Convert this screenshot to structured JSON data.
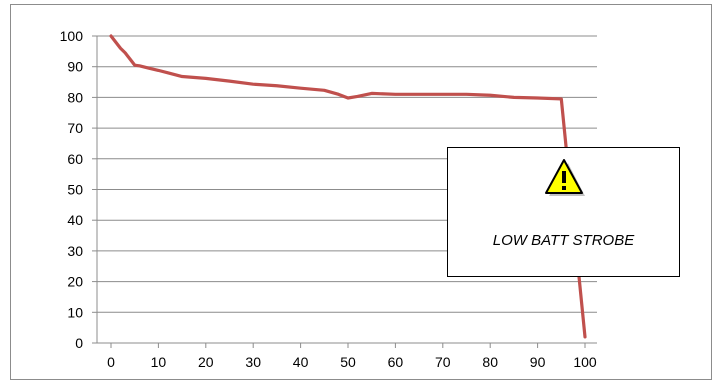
{
  "chart_data": {
    "type": "line",
    "title": "",
    "xlabel": "",
    "ylabel": "",
    "xlim": [
      0,
      100
    ],
    "ylim": [
      0,
      100
    ],
    "x_ticks": [
      0,
      10,
      20,
      30,
      40,
      50,
      60,
      70,
      80,
      90,
      100
    ],
    "y_ticks": [
      0,
      10,
      20,
      30,
      40,
      50,
      60,
      70,
      80,
      90,
      100
    ],
    "grid": "horizontal",
    "legend": "none",
    "series": [
      {
        "color": "#c0504d",
        "x": [
          0,
          1,
          2,
          3,
          4,
          5,
          6,
          8,
          10,
          12,
          14,
          15,
          20,
          25,
          30,
          35,
          40,
          45,
          48,
          50,
          52,
          55,
          60,
          70,
          75,
          80,
          85,
          90,
          95,
          100
        ],
        "y": [
          100,
          98,
          96,
          94.5,
          92.5,
          90.5,
          90.3,
          89.5,
          88.8,
          88,
          87.2,
          86.8,
          86.2,
          85.3,
          84.3,
          83.8,
          83,
          82.3,
          81,
          79.8,
          80.3,
          81.3,
          81,
          81,
          81,
          80.7,
          80,
          79.8,
          79.5,
          2
        ]
      }
    ]
  },
  "annotation": {
    "icon": "warning-triangle-icon",
    "label": "LOW BATT STROBE"
  }
}
